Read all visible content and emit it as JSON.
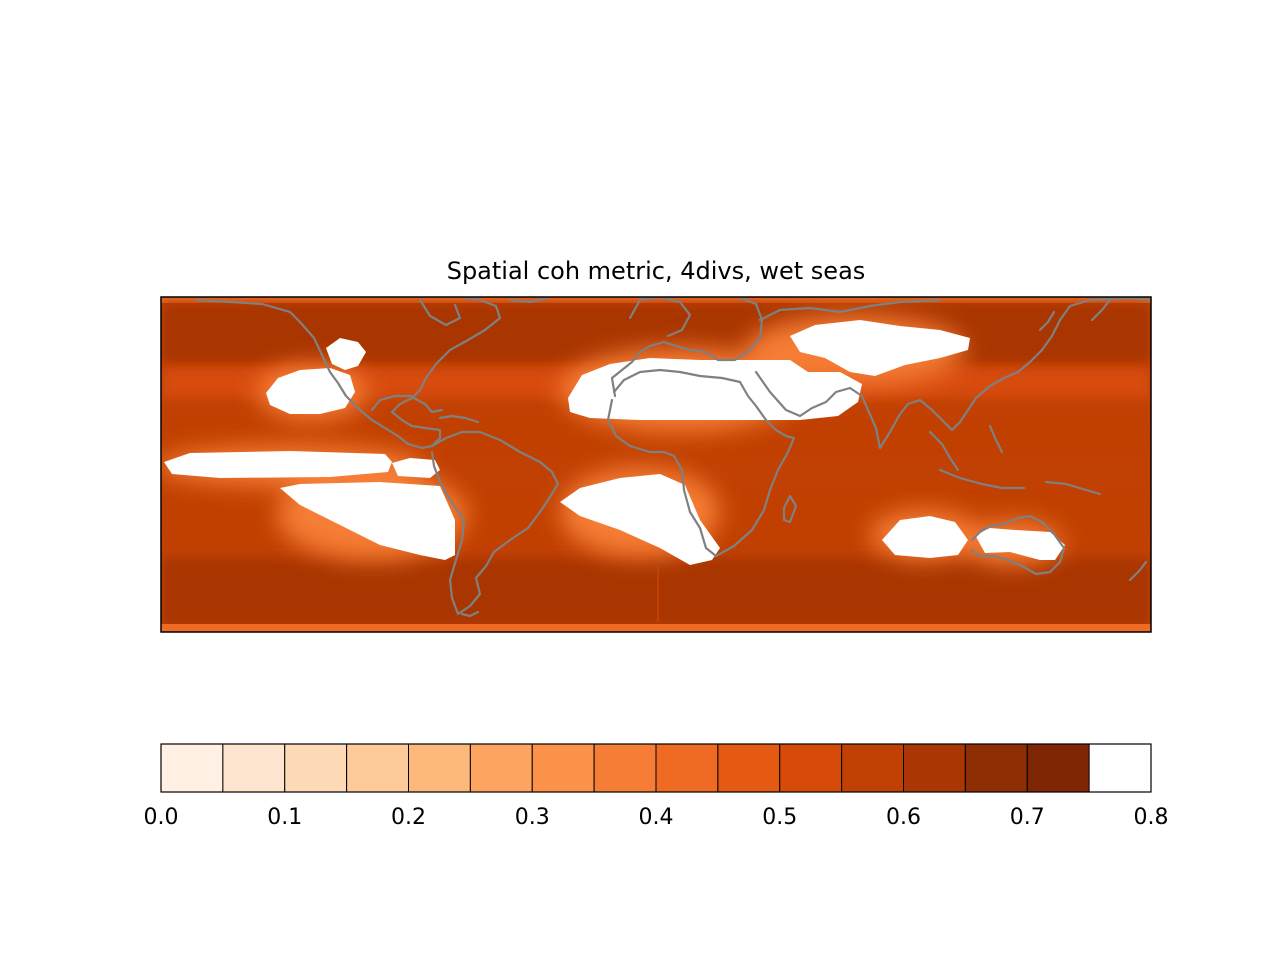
{
  "chart_data": {
    "type": "heatmap",
    "title": "Spatial coh metric, 4divs, wet seas",
    "map": {
      "projection": "equirectangular",
      "extent_lon": [
        -180,
        180
      ],
      "extent_lat": [
        -90,
        90
      ],
      "coastlines": true,
      "coastline_color": "#808080",
      "land_and_low_value_fill": "#ffffff"
    },
    "colorbar": {
      "orientation": "horizontal",
      "placement": "bottom",
      "levels": [
        0.0,
        0.05,
        0.1,
        0.15,
        0.2,
        0.25,
        0.3,
        0.35,
        0.4,
        0.45,
        0.5,
        0.55,
        0.6,
        0.65,
        0.7,
        0.75,
        0.8
      ],
      "colors": [
        "#fff0e3",
        "#fee5cf",
        "#fdd9b6",
        "#fdca99",
        "#fdb87b",
        "#fda560",
        "#fc9149",
        "#f67d36",
        "#ef6b24",
        "#e45a13",
        "#d74b09",
        "#c14003",
        "#a93603",
        "#8f2e04",
        "#7f2704"
      ],
      "tick_labels": [
        "0.0",
        "0.1",
        "0.2",
        "0.3",
        "0.4",
        "0.5",
        "0.6",
        "0.7",
        "0.8"
      ]
    },
    "dominant_levels": {
      "southern_ocean": 0.65,
      "north_pacific": 0.65,
      "tropics": 0.55,
      "subtropical_edges": 0.5
    }
  }
}
